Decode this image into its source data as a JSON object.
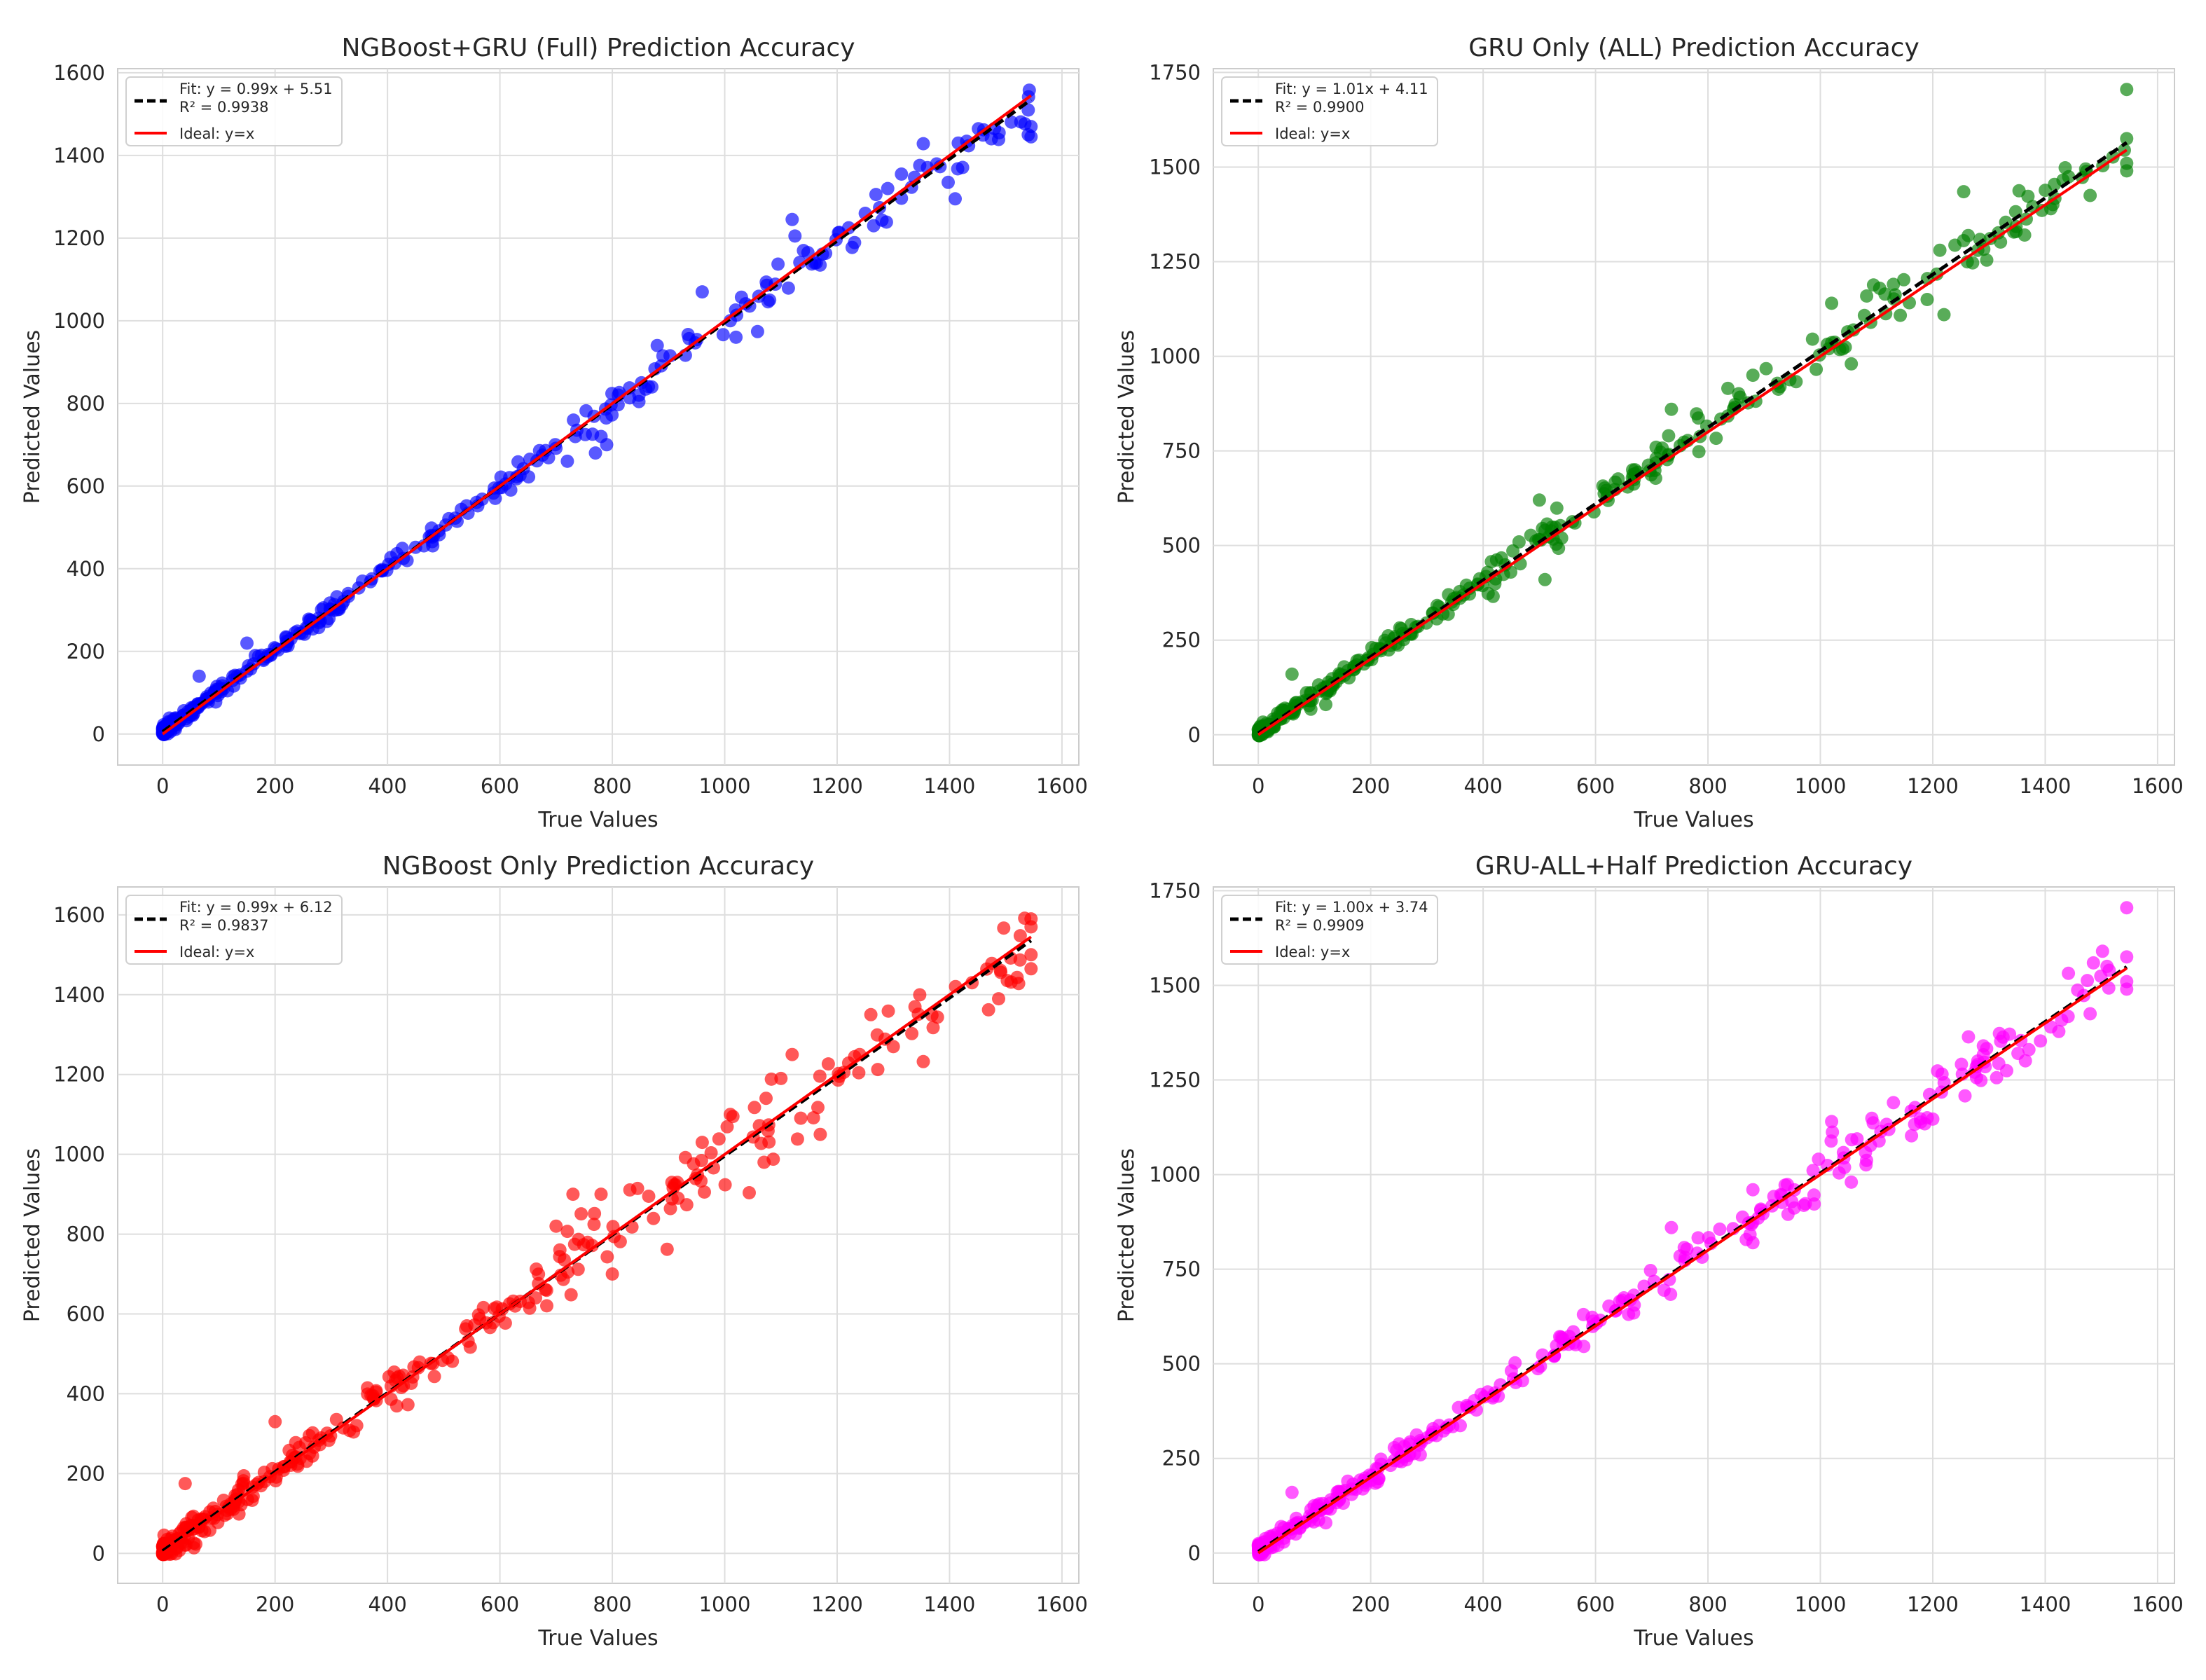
{
  "figure": {
    "xlabel": "True Values",
    "ylabel": "Predicted Values"
  },
  "chart_data": [
    {
      "type": "scatter",
      "title": "NGBoost+GRU (Full) Prediction Accuracy",
      "xlabel": "True Values",
      "ylabel": "Predicted Values",
      "xlim": [
        -80,
        1630
      ],
      "ylim": [
        -75,
        1610
      ],
      "xticks": [
        0,
        200,
        400,
        600,
        800,
        1000,
        1200,
        1400,
        1600
      ],
      "yticks": [
        0,
        200,
        400,
        600,
        800,
        1000,
        1200,
        1400,
        1600
      ],
      "grid": true,
      "legend_position": "top-left",
      "point_color": "#0000ff",
      "fit": {
        "slope": 0.99,
        "intercept": 5.51,
        "r2": 0.9938,
        "label": "Fit: y = 0.99x + 5.51",
        "r2_label": "R² = 0.9938"
      },
      "ideal_label": "Ideal: y=x",
      "line_range": [
        0,
        1545
      ],
      "noise": 14,
      "outliers": [
        [
          1540,
          1510
        ],
        [
          1545,
          1470
        ],
        [
          1545,
          1445
        ],
        [
          1540,
          1450
        ],
        [
          1410,
          1295
        ],
        [
          1480,
          1465
        ],
        [
          1120,
          1245
        ],
        [
          1125,
          1205
        ],
        [
          1010,
          1000
        ],
        [
          1020,
          960
        ],
        [
          960,
          1070
        ],
        [
          890,
          915
        ],
        [
          880,
          940
        ],
        [
          1140,
          1170
        ],
        [
          1290,
          1320
        ],
        [
          1250,
          1260
        ],
        [
          770,
          680
        ],
        [
          780,
          720
        ],
        [
          790,
          700
        ],
        [
          720,
          660
        ],
        [
          65,
          140
        ],
        [
          150,
          220
        ],
        [
          1265,
          1230
        ],
        [
          1160,
          1140
        ],
        [
          1080,
          1050
        ]
      ]
    },
    {
      "type": "scatter",
      "title": "GRU Only (ALL) Prediction Accuracy",
      "xlabel": "True Values",
      "ylabel": "Predicted Values",
      "xlim": [
        -80,
        1630
      ],
      "ylim": [
        -80,
        1760
      ],
      "xticks": [
        0,
        200,
        400,
        600,
        800,
        1000,
        1200,
        1400,
        1600
      ],
      "yticks": [
        0,
        250,
        500,
        750,
        1000,
        1250,
        1500,
        1750
      ],
      "grid": true,
      "legend_position": "top-left",
      "point_color": "#008000",
      "fit": {
        "slope": 1.01,
        "intercept": 4.11,
        "r2": 0.99,
        "label": "Fit: y = 1.01x + 4.11",
        "r2_label": "R² = 0.9900"
      },
      "ideal_label": "Ideal: y=x",
      "line_range": [
        0,
        1545
      ],
      "noise": 22,
      "outliers": [
        [
          1545,
          1705
        ],
        [
          1545,
          1575
        ],
        [
          1545,
          1510
        ],
        [
          1545,
          1490
        ],
        [
          1255,
          1435
        ],
        [
          1220,
          1110
        ],
        [
          1055,
          980
        ],
        [
          1020,
          1140
        ],
        [
          1480,
          1425
        ],
        [
          1410,
          1390
        ],
        [
          735,
          860
        ],
        [
          730,
          790
        ],
        [
          510,
          410
        ],
        [
          500,
          620
        ],
        [
          880,
          950
        ],
        [
          120,
          80
        ],
        [
          60,
          160
        ],
        [
          1280,
          1280
        ],
        [
          1130,
          1190
        ],
        [
          1190,
          1150
        ]
      ]
    },
    {
      "type": "scatter",
      "title": "NGBoost Only Prediction Accuracy",
      "xlabel": "True Values",
      "ylabel": "Predicted Values",
      "xlim": [
        -80,
        1630
      ],
      "ylim": [
        -75,
        1670
      ],
      "xticks": [
        0,
        200,
        400,
        600,
        800,
        1000,
        1200,
        1400,
        1600
      ],
      "yticks": [
        0,
        200,
        400,
        600,
        800,
        1000,
        1200,
        1400,
        1600
      ],
      "grid": true,
      "legend_position": "top-left",
      "point_color": "#ff0000",
      "fit": {
        "slope": 0.99,
        "intercept": 6.12,
        "r2": 0.9837,
        "label": "Fit: y = 0.99x + 6.12",
        "r2_label": "R² = 0.9837"
      },
      "ideal_label": "Ideal: y=x",
      "line_range": [
        0,
        1545
      ],
      "noise": 32,
      "outliers": [
        [
          1545,
          1590
        ],
        [
          1545,
          1570
        ],
        [
          1545,
          1500
        ],
        [
          1545,
          1465
        ],
        [
          1260,
          1350
        ],
        [
          1120,
          1250
        ],
        [
          1100,
          1190
        ],
        [
          1170,
          1050
        ],
        [
          1070,
          980
        ],
        [
          960,
          1030
        ],
        [
          780,
          900
        ],
        [
          800,
          700
        ],
        [
          730,
          900
        ],
        [
          200,
          330
        ],
        [
          40,
          175
        ],
        [
          700,
          820
        ],
        [
          1440,
          1430
        ],
        [
          1240,
          1250
        ],
        [
          1300,
          1270
        ],
        [
          1010,
          1100
        ]
      ]
    },
    {
      "type": "scatter",
      "title": "GRU-ALL+Half Prediction Accuracy",
      "xlabel": "True Values",
      "ylabel": "Predicted Values",
      "xlim": [
        -80,
        1630
      ],
      "ylim": [
        -80,
        1760
      ],
      "xticks": [
        0,
        200,
        400,
        600,
        800,
        1000,
        1200,
        1400,
        1600
      ],
      "yticks": [
        0,
        250,
        500,
        750,
        1000,
        1250,
        1500,
        1750
      ],
      "grid": true,
      "legend_position": "top-left",
      "point_color": "#ff00ff",
      "fit": {
        "slope": 1.0,
        "intercept": 3.74,
        "r2": 0.9909,
        "label": "Fit: y = 1.00x + 3.74",
        "r2_label": "R² = 0.9909"
      },
      "ideal_label": "Ideal: y=x",
      "line_range": [
        0,
        1545
      ],
      "noise": 22,
      "outliers": [
        [
          1545,
          1705
        ],
        [
          1545,
          1575
        ],
        [
          1545,
          1510
        ],
        [
          1545,
          1490
        ],
        [
          1020,
          1140
        ],
        [
          1055,
          980
        ],
        [
          1480,
          1425
        ],
        [
          1410,
          1390
        ],
        [
          735,
          860
        ],
        [
          880,
          960
        ],
        [
          880,
          820
        ],
        [
          120,
          80
        ],
        [
          60,
          160
        ],
        [
          1280,
          1300
        ],
        [
          1130,
          1190
        ],
        [
          1190,
          1150
        ],
        [
          1290,
          1340
        ],
        [
          1510,
          1550
        ]
      ]
    }
  ]
}
